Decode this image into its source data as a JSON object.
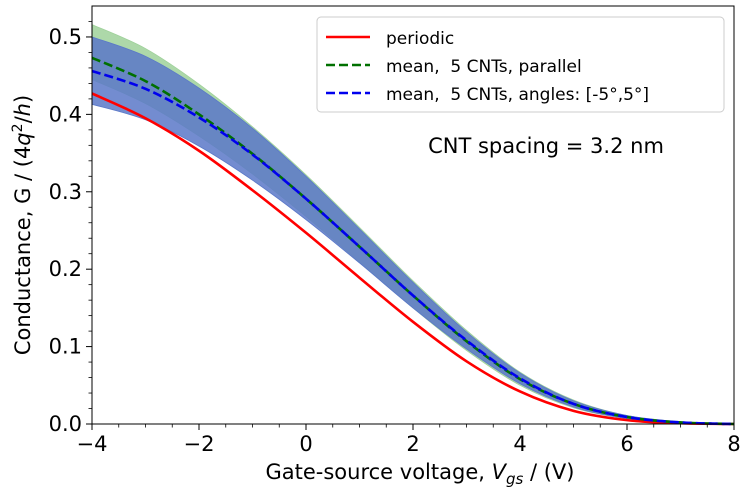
{
  "chart_data": {
    "type": "line",
    "title": "",
    "xlabel": "Gate-source voltage, V_gs / (V)",
    "ylabel": "Conductance, G / (4q²/h)",
    "xlim": [
      -4,
      8
    ],
    "ylim": [
      0.0,
      0.54
    ],
    "xticks": [
      -4,
      -2,
      0,
      2,
      4,
      6,
      8
    ],
    "xtick_labels": [
      "−4",
      "−2",
      "0",
      "2",
      "4",
      "6",
      "8"
    ],
    "yticks": [
      0.0,
      0.1,
      0.2,
      0.3,
      0.4,
      0.5
    ],
    "ytick_labels": [
      "0.0",
      "0.1",
      "0.2",
      "0.3",
      "0.4",
      "0.5"
    ],
    "annotation": "CNT spacing = 3.2 nm",
    "legend_position": "top-right",
    "x": [
      -4,
      -3,
      -2,
      -1,
      0,
      1,
      2,
      3,
      4,
      5,
      6,
      7,
      8
    ],
    "series": [
      {
        "name": "periodic",
        "color": "#ff0000",
        "style": "solid",
        "values": [
          0.427,
          0.395,
          0.353,
          0.302,
          0.247,
          0.189,
          0.132,
          0.081,
          0.042,
          0.017,
          0.005,
          0.001,
          0.0
        ]
      },
      {
        "name": "mean,  5 CNTs, parallel",
        "color": "#007000",
        "style": "dashed",
        "values": [
          0.473,
          0.443,
          0.4,
          0.349,
          0.291,
          0.229,
          0.166,
          0.107,
          0.058,
          0.026,
          0.009,
          0.002,
          0.0
        ],
        "band_lower": [
          0.445,
          0.414,
          0.372,
          0.323,
          0.268,
          0.209,
          0.15,
          0.095,
          0.05,
          0.021,
          0.007,
          0.001,
          0.0
        ],
        "band_upper": [
          0.516,
          0.485,
          0.439,
          0.384,
          0.322,
          0.254,
          0.185,
          0.121,
          0.067,
          0.031,
          0.011,
          0.003,
          0.0
        ],
        "band_color": "#9fd19a"
      },
      {
        "name": "mean,  5 CNTs, angles: [-5°,5°]",
        "color": "#0000ee",
        "style": "dashed",
        "values": [
          0.456,
          0.433,
          0.396,
          0.348,
          0.291,
          0.229,
          0.166,
          0.108,
          0.059,
          0.026,
          0.009,
          0.002,
          0.0
        ],
        "band_lower": [
          0.413,
          0.393,
          0.359,
          0.315,
          0.264,
          0.208,
          0.15,
          0.097,
          0.052,
          0.022,
          0.007,
          0.001,
          0.0
        ],
        "band_upper": [
          0.5,
          0.475,
          0.434,
          0.382,
          0.32,
          0.252,
          0.183,
          0.119,
          0.066,
          0.03,
          0.011,
          0.003,
          0.0
        ],
        "band_color": "#5a78c8"
      }
    ]
  }
}
